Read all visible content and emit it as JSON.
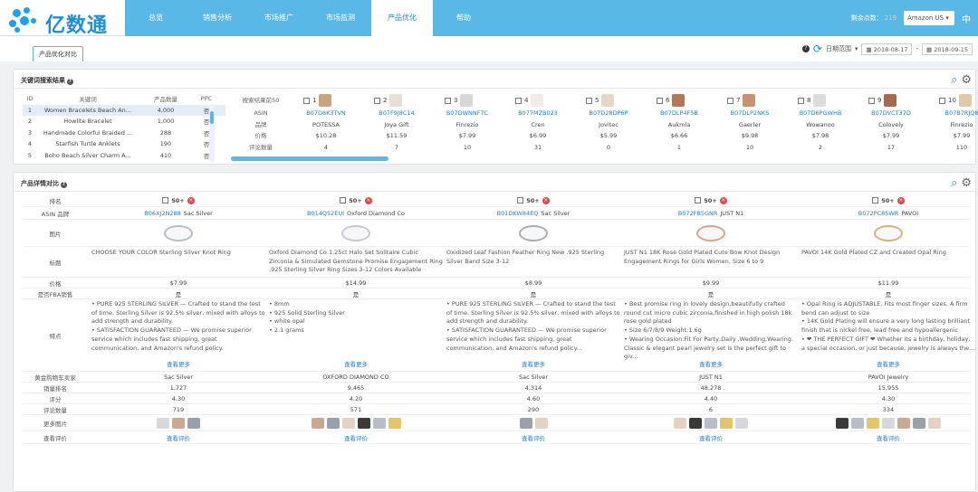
{
  "logo": {
    "text": "亿数通"
  },
  "nav": {
    "items": [
      {
        "label": "总览"
      },
      {
        "label": "销售分析"
      },
      {
        "label": "市场推广"
      },
      {
        "label": "市场监测"
      },
      {
        "label": "产品优化"
      },
      {
        "label": "帮助"
      }
    ],
    "active": 4,
    "account_label": "剩余点数：",
    "account_count": "219",
    "site": "Amazon US",
    "extra": "中"
  },
  "tab": {
    "label": "产品优化对比"
  },
  "dates": {
    "range_label": "日期范围",
    "start": "2018-08-17",
    "end": "2018-09-15"
  },
  "keyword_panel": {
    "title": "关键词搜索结果",
    "headers": {
      "id": "ID",
      "keyword": "关键词",
      "count": "产品数量",
      "ppc": "PPC"
    },
    "rows": [
      {
        "id": "1",
        "keyword": "Women Bracelets Beach An...",
        "count": "4,000",
        "ppc": "否"
      },
      {
        "id": "2",
        "keyword": "Howlite Bracelet",
        "count": "1,000",
        "ppc": "否"
      },
      {
        "id": "3",
        "keyword": "Handmade Colorful Braided ...",
        "count": "288",
        "ppc": "否"
      },
      {
        "id": "4",
        "keyword": "Starfish Turtle Anklets",
        "count": "190",
        "ppc": "否"
      },
      {
        "id": "5",
        "keyword": "Boho Beach Silver Charm A...",
        "count": "410",
        "ppc": "否"
      }
    ],
    "result_labels": {
      "header": "搜索结果前50",
      "asin": "ASIN",
      "brand": "品牌",
      "price": "价格",
      "reviews": "评论数量"
    },
    "results": [
      {
        "n": "1",
        "asin": "B07D6K3TVN",
        "brand": "POTESSA",
        "price": "$10.28",
        "reviews": "4"
      },
      {
        "n": "2",
        "asin": "B07F9J8C14",
        "brand": "Joya Gift",
        "price": "$11.59",
        "reviews": "7"
      },
      {
        "n": "3",
        "asin": "B07DWNNF7C",
        "brand": "Finrezio",
        "price": "$7.99",
        "reviews": "10"
      },
      {
        "n": "4",
        "asin": "B077MZB023",
        "brand": "Cren",
        "price": "$6.99",
        "reviews": "31"
      },
      {
        "n": "5",
        "asin": "B07D28DP6P",
        "brand": "Jovitec",
        "price": "$5.99",
        "reviews": "0"
      },
      {
        "n": "6",
        "asin": "B07DLP4F5B",
        "brand": "Aukmla",
        "price": "$6.66",
        "reviews": "1"
      },
      {
        "n": "7",
        "asin": "B07DLP2NKS",
        "brand": "Gaerler",
        "price": "$9.98",
        "reviews": "10"
      },
      {
        "n": "8",
        "asin": "B07D6PGWHB",
        "brand": "Wowanoo",
        "price": "$7.98",
        "reviews": "2"
      },
      {
        "n": "9",
        "asin": "B07DVCT37D",
        "brand": "Colovely",
        "price": "$7.99",
        "reviews": "17"
      },
      {
        "n": "10",
        "asin": "B07B7RJQ8",
        "brand": "Finrezio",
        "price": "$7.99",
        "reviews": "110"
      }
    ]
  },
  "detail_panel": {
    "title": "产品详情对比",
    "labels": {
      "select": "排名",
      "asin": "ASIN 品牌",
      "image": "图片",
      "title": "标题",
      "price": "价格",
      "fba": "是否FBA销售",
      "features": "特点",
      "seller": "黄金购物车卖家",
      "rank": "销量排名",
      "rating": "评分",
      "reviews": "评论数量",
      "more_images": "更多图片",
      "review_link": "查看评价"
    },
    "rank_badge": "50+",
    "more_label": "查看更多",
    "review_link": "查看评价",
    "products": [
      {
        "asin": "B06XJ2N288",
        "brand": "Sac Silver",
        "title": "CHOOSE YOUR COLOR Sterling Silver Knot Ring",
        "price": "$7.99",
        "fba": "是",
        "features": [
          "• PURE 925 STERLING SILVER — Crafted to stand the test of time. Sterling Silver is 92.5% silver, mixed with alloys to add strength and durability.",
          "• SATISFACTION GUARANTEED — We promise superior service which includes fast shipping, great communication, and Amazon's refund policy."
        ],
        "seller": "Sac Silver",
        "rank": "1,727",
        "rating": "4.30",
        "reviews": "719"
      },
      {
        "asin": "B014Q52EUI",
        "brand": "Oxford Diamond Co",
        "title": "Oxford Diamond Co 1.25ct Halo Set Solitaire Cubic Zirconia & Simulated Gemstone Promise Engagement Ring .925 Sterling Silver Ring Sizes 3-12 Colors Available",
        "price": "$14.99",
        "fba": "是",
        "features": [
          "• 8mm",
          "• 925 Solid Sterling Silver",
          "• white opal",
          "• 2.1 grams"
        ],
        "seller": "OXFORD DIAMOND CO",
        "rank": "9,465",
        "rating": "4.20",
        "reviews": "571"
      },
      {
        "asin": "B01DKW84EQ",
        "brand": "Sac Silver",
        "title": "Oxidized Leaf Fashion Feather Ring New .925 Sterling Silver Band Size 3-12",
        "price": "$8.99",
        "fba": "是",
        "features": [
          "• PURE 925 STERLING SILVER — Crafted to stand the test of time. Sterling Silver is 92.5% silver, mixed with alloys to add strength and durability.",
          "• SATISFACTION GUARANTEED — We promise superior service which includes fast shipping, great communication, and Amazon's refund policy..."
        ],
        "seller": "Sac Silver",
        "rank": "4,314",
        "rating": "4.60",
        "reviews": "290"
      },
      {
        "asin": "B072FB5GNR",
        "brand": "JUST N1",
        "title": "JUST N1 18K Rose Gold Plated Cute Bow Knot Design Engagement Rings for Girls Women, Size 6 to 9",
        "price": "$9.99",
        "fba": "是",
        "features": [
          "• Best promise ring in lovely design,beautifully crafted round cut micro cubic zirconia,finished in high polish 18k rose gold plated",
          "• Size 6/7/8/9 Weight:1.6g",
          "• Wearing Occasion:Fit For Party,Daily ,Wedding,Wearing. Classic & elegant pearl jewelry set is the perfect gift to giv..."
        ],
        "seller": "JUST N1",
        "rank": "48,278",
        "rating": "4.40",
        "reviews": "6"
      },
      {
        "asin": "B072PC85WR",
        "brand": "PAVOI",
        "title": "PAVOI 14K Gold Plated CZ and Created Opal Ring",
        "price": "$11.99",
        "fba": "是",
        "features": [
          "• Opal Ring is ADJUSTABLE. Fits most finger sizes. A firm bend can adjust to size",
          "• 14K Gold Plating will ensure a very long lasting brilliant finish that is nickel free, lead free and hypoallergenic",
          "• ❤ THE PERFECT GIFT ❤ Whether its a birthday, holiday, a special occasion, or just because, jewelry is always the..."
        ],
        "seller": "PAVOI Jewelry",
        "rank": "15,955",
        "rating": "4.30",
        "reviews": "334"
      }
    ]
  },
  "colors": {
    "accent": "#5ab8e6",
    "link": "#1b7fd4",
    "delete": "#e04848"
  }
}
